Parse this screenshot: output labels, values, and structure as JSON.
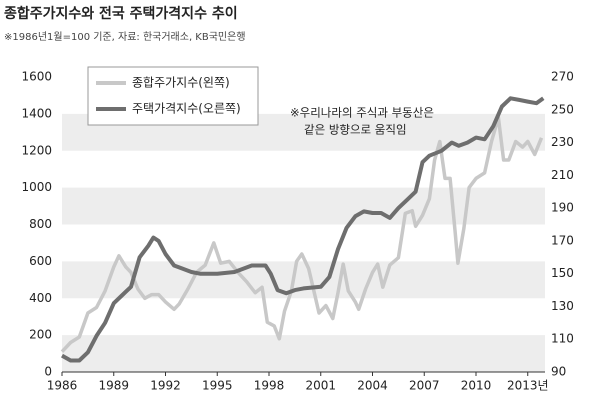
{
  "chart_data": {
    "type": "line",
    "title": "종합주가지수와 전국 주택가격지수 추이",
    "subtitle": "※1986년1월=100 기준, 자료: 한국거래소, KB국민은행",
    "annotation": [
      "※우리나라의 주식과 부동산은",
      "같은 방향으로 움직임"
    ],
    "legend": "upper left",
    "grid": "bands",
    "xlim": [
      1986,
      2014
    ],
    "xticks": [
      1986,
      1989,
      1992,
      1995,
      1998,
      2001,
      2004,
      2007,
      2010,
      {
        "value": 2013,
        "label": "2013년"
      }
    ],
    "ylim": [
      0,
      1600
    ],
    "yticks": [
      0,
      200,
      400,
      600,
      800,
      1000,
      1200,
      1400,
      1600
    ],
    "y2lim": [
      90,
      270
    ],
    "y2ticks": [
      90,
      110,
      130,
      150,
      170,
      190,
      210,
      230,
      250,
      270
    ],
    "series": [
      {
        "name": "종합주가지수(왼쪽)",
        "color": "#c8c8c8",
        "x": [
          1986.0,
          1986.5,
          1987.0,
          1987.5,
          1988.0,
          1988.5,
          1989.0,
          1989.3,
          1989.7,
          1990.0,
          1990.4,
          1990.8,
          1991.2,
          1991.6,
          1992.0,
          1992.5,
          1992.8,
          1993.3,
          1993.8,
          1994.3,
          1994.8,
          1995.2,
          1995.7,
          1996.2,
          1996.7,
          1997.2,
          1997.6,
          1997.9,
          1998.3,
          1998.6,
          1998.9,
          1999.3,
          1999.6,
          1999.9,
          2000.3,
          2000.7,
          2000.9,
          2001.3,
          2001.7,
          2002.0,
          2002.3,
          2002.6,
          2003.0,
          2003.2,
          2003.6,
          2004.0,
          2004.3,
          2004.6,
          2005.0,
          2005.5,
          2005.9,
          2006.3,
          2006.5,
          2006.9,
          2007.3,
          2007.6,
          2007.9,
          2008.2,
          2008.5,
          2008.8,
          2008.95,
          2009.3,
          2009.6,
          2010.0,
          2010.5,
          2010.9,
          2011.3,
          2011.6,
          2011.9,
          2012.3,
          2012.7,
          2013.0,
          2013.4,
          2013.8
        ],
        "values": [
          110,
          160,
          190,
          320,
          350,
          440,
          570,
          630,
          570,
          540,
          450,
          400,
          420,
          420,
          380,
          340,
          370,
          450,
          540,
          580,
          700,
          590,
          600,
          540,
          490,
          430,
          460,
          270,
          250,
          180,
          330,
          440,
          600,
          640,
          560,
          400,
          320,
          360,
          290,
          430,
          585,
          440,
          380,
          340,
          450,
          540,
          585,
          460,
          580,
          620,
          860,
          875,
          790,
          850,
          940,
          1150,
          1250,
          1050,
          1050,
          750,
          590,
          780,
          1000,
          1050,
          1080,
          1250,
          1380,
          1150,
          1150,
          1250,
          1220,
          1250,
          1180,
          1270
        ]
      },
      {
        "name": "주택가격지수(오른쪽)",
        "color": "#6e6e6e",
        "axis": "y2",
        "x": [
          1986.0,
          1986.5,
          1987.0,
          1987.5,
          1988.0,
          1988.5,
          1989.0,
          1989.5,
          1990.0,
          1990.5,
          1991.0,
          1991.3,
          1991.6,
          1992.0,
          1992.5,
          1993.0,
          1993.5,
          1994.0,
          1995.0,
          1996.0,
          1997.0,
          1997.8,
          1998.1,
          1998.5,
          1999.0,
          1999.5,
          2000.0,
          2001.0,
          2001.5,
          2002.0,
          2002.5,
          2003.0,
          2003.5,
          2004.0,
          2004.5,
          2005.0,
          2005.5,
          2006.0,
          2006.5,
          2006.9,
          2007.3,
          2008.0,
          2008.6,
          2009.0,
          2009.5,
          2010.0,
          2010.5,
          2011.0,
          2011.5,
          2012.0,
          2012.5,
          2013.0,
          2013.5,
          2013.9
        ],
        "values": [
          100,
          97,
          97,
          102,
          112,
          120,
          132,
          137,
          142,
          160,
          167,
          172,
          170,
          162,
          155,
          153,
          151,
          150,
          150,
          151,
          155,
          155,
          150,
          140,
          138,
          140,
          141,
          142,
          148,
          165,
          178,
          185,
          188,
          187,
          187,
          184,
          190,
          195,
          200,
          218,
          222,
          225,
          230,
          228,
          230,
          233,
          232,
          240,
          252,
          257,
          256,
          255,
          254,
          257
        ]
      }
    ]
  }
}
